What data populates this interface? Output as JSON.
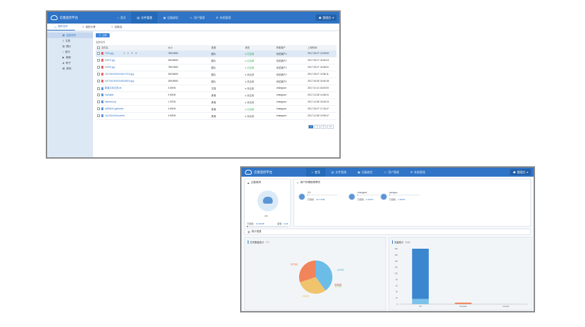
{
  "app": {
    "title": "云盘监控平台",
    "user": "管理员"
  },
  "nav": [
    {
      "label": "首页"
    },
    {
      "label": "文件管理"
    },
    {
      "label": "设备绑定"
    },
    {
      "label": "用户管理"
    },
    {
      "label": "系统管理"
    }
  ],
  "screen1": {
    "tabs": [
      {
        "label": "我的文件"
      },
      {
        "label": "我的分享"
      },
      {
        "label": "回收站"
      }
    ],
    "sidebar": [
      {
        "label": "全部文件"
      },
      {
        "label": "文档"
      },
      {
        "label": "图片"
      },
      {
        "label": "音乐"
      },
      {
        "label": "视频"
      },
      {
        "label": "种子"
      },
      {
        "label": "其他"
      }
    ],
    "upload_label": "上传",
    "breadcrumb": "全部文件",
    "columns": [
      "文件名",
      "大小",
      "类型",
      "状态",
      "所属用户",
      "上传时间"
    ],
    "rows": [
      {
        "name": "TOG.jpg",
        "size": "789.03KB",
        "type": "图片",
        "status": "已启用",
        "user": "测试用户1",
        "time": "2017-09-27 13:29:52"
      },
      {
        "name": "04972.jpg",
        "size": "369.56KB",
        "type": "图片",
        "status": "已启用",
        "user": "测试用户2",
        "time": "2017-09-27 15:40:04"
      },
      {
        "name": "04975.jpg",
        "size": "789.03KB",
        "type": "图片",
        "status": "已启用",
        "user": "测试用户1",
        "time": "2017-09-27 15:36:51"
      },
      {
        "name": "20170619020349017019.jpg",
        "size": "369.56KB",
        "type": "图片",
        "status": "未启用",
        "user": "测试用户2",
        "time": "2017-09-27 13:35:11"
      },
      {
        "name": "20170619020349018920.jpg",
        "size": "369.56KB",
        "type": "图片",
        "status": "未启用",
        "user": "测试用户2",
        "time": "2017-09-26 15:40:28"
      },
      {
        "name": "新建文本文档.txt",
        "size": "0.00KB",
        "type": "文档",
        "status": "未启用",
        "user": "zhangsan",
        "time": "2017-10-11 16:03:00"
      },
      {
        "name": "mySqlde",
        "size": "0.00KB",
        "type": "其他",
        "status": "未启用",
        "user": "zhangsan",
        "time": "2017-12-08 14:46:41"
      },
      {
        "name": "dtamemory",
        "size": "1.37KB",
        "type": "其他",
        "status": "未启用",
        "user": "zhangsan",
        "time": "2017-12-08 15:04:23"
      },
      {
        "name": "a050630.gdfmktxe",
        "size": "0.00KB",
        "type": "其他",
        "status": "已启用",
        "user": "zhangsan",
        "time": "2017-09-27 17:24:47"
      },
      {
        "name": "2cc232d.64muoithe",
        "size": "0.00KB",
        "type": "其他",
        "status": "未启用",
        "user": "zhangsan",
        "time": "2017-12-08 13:09:47"
      }
    ],
    "pages": [
      "1",
      "2",
      "3",
      "»»"
    ]
  },
  "screen2": {
    "storage": {
      "title": "云盘使用",
      "percent": "1%",
      "used_label": "已使用：",
      "used": "16.99MB",
      "total_label": "容量：",
      "total": "1GB",
      "fill_fraction": 0.01
    },
    "users_title": "用户存储使用情况",
    "users": [
      {
        "name": "111",
        "used_label": "已使用：",
        "used": "16.77MB",
        "fill_fraction": 0.02
      },
      {
        "name": "zhangsan",
        "used_label": "已使用：",
        "used": "0.22KB",
        "fill_fraction": 0.0
      },
      {
        "name": "wangwu",
        "used_label": "已使用：",
        "used": "1.00KB",
        "fill_fraction": 0.0
      }
    ],
    "stats_title": "统计信息",
    "pie_title": "文件数量统计",
    "pie_unit": "（个）",
    "bar_title": "流量统计",
    "bar_unit": "（MB）"
  },
  "chart_data": [
    {
      "type": "pie",
      "title": "文件数量统计（个）",
      "slices": [
        {
          "label": "其他数量",
          "value": 4,
          "color": "#6bbde8"
        },
        {
          "label": "视频数量",
          "value": 0,
          "color": "#e0457b"
        },
        {
          "label": "音乐数量",
          "value": 0,
          "color": "#9ed36b"
        },
        {
          "label": "文档数量",
          "value": 3,
          "color": "#f0c36d"
        },
        {
          "label": "图片数量",
          "value": 3,
          "color": "#f2845c"
        }
      ]
    },
    {
      "type": "bar",
      "title": "流量统计（MB）",
      "categories": [
        "111",
        "zhangsan",
        "wangwu"
      ],
      "series": [
        {
          "name": "used",
          "values": [
            17,
            0.2,
            0
          ]
        },
        {
          "name": "base",
          "values": [
            180,
            5,
            0
          ]
        }
      ],
      "yticks": [
        "180",
        "160",
        "140",
        "120",
        "100",
        "80",
        "60",
        "40",
        "20",
        "0"
      ],
      "ylim": [
        0,
        180
      ]
    }
  ]
}
